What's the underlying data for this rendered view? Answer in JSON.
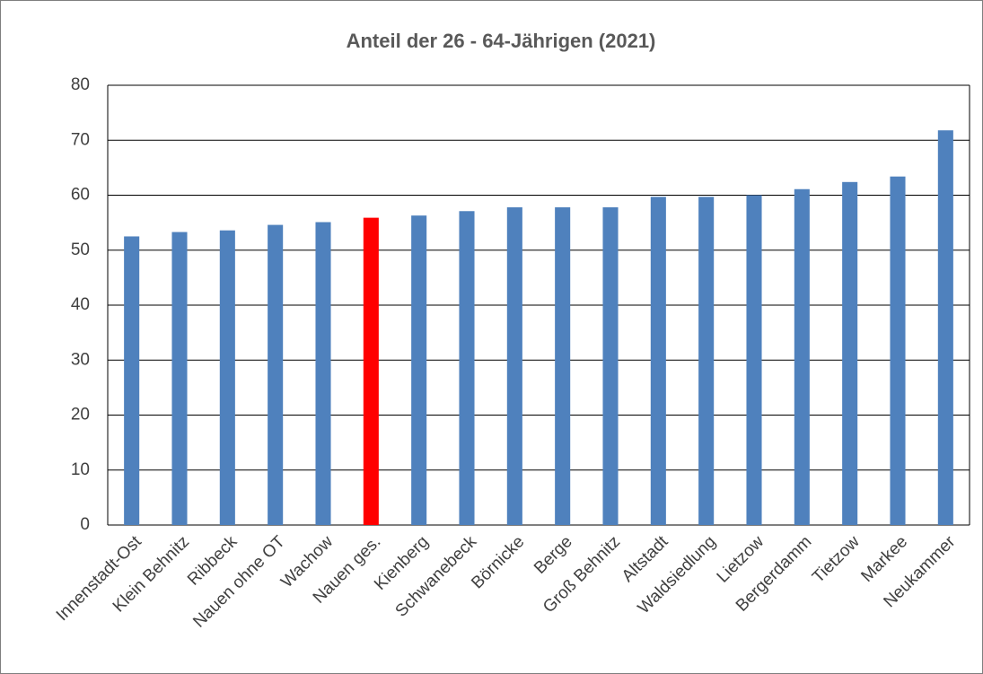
{
  "chart_data": {
    "type": "bar",
    "title": "Anteil  der 26 - 64-Jährigen  (2021)",
    "categories": [
      "Innenstadt-Ost",
      "Klein Behnitz",
      "Ribbeck",
      "Nauen ohne OT",
      "Wachow",
      "Nauen ges.",
      "Kienberg",
      "Schwanebeck",
      "Börnicke",
      "Berge",
      "Groß Behnitz",
      "Altstadt",
      "Waldsiedlung",
      "Lietzow",
      "Bergerdamm",
      "Tietzow",
      "Markee",
      "Neukammer"
    ],
    "values": [
      52.5,
      53.3,
      53.6,
      54.6,
      55.1,
      55.9,
      56.3,
      57.1,
      57.8,
      57.8,
      57.8,
      59.7,
      59.7,
      60.0,
      61.1,
      62.4,
      63.4,
      71.8
    ],
    "colors": [
      "#4f81bd",
      "#4f81bd",
      "#4f81bd",
      "#4f81bd",
      "#4f81bd",
      "#ff0000",
      "#4f81bd",
      "#4f81bd",
      "#4f81bd",
      "#4f81bd",
      "#4f81bd",
      "#4f81bd",
      "#4f81bd",
      "#4f81bd",
      "#4f81bd",
      "#4f81bd",
      "#4f81bd",
      "#4f81bd"
    ],
    "ylim": [
      0,
      80
    ],
    "yticks": [
      0,
      10,
      20,
      30,
      40,
      50,
      60,
      70,
      80
    ],
    "grid": true
  }
}
